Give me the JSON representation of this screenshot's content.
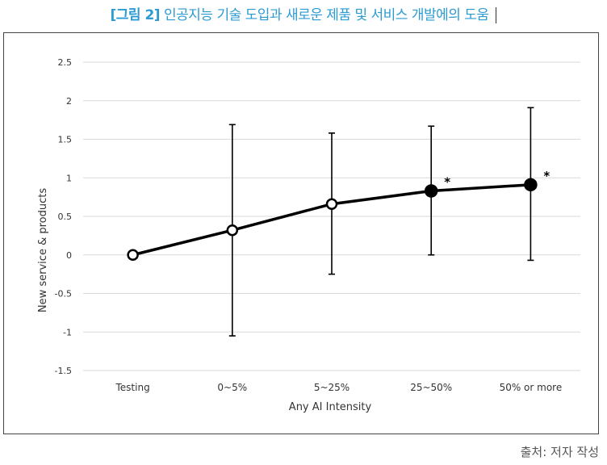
{
  "figure": {
    "prefix": "[그림 2]",
    "title": "인공지능 기술 도입과 새로운 제품 및 서비스 개발에의 도움"
  },
  "source_note": "출처: 저자 작성",
  "colors": {
    "title": "#2b9bd1",
    "line": "#000000",
    "grid": "#d9d9d9"
  },
  "chart_data": {
    "type": "line",
    "xlabel": "Any AI Intensity",
    "ylabel": "New service & products",
    "ylim": [
      -1.5,
      2.5
    ],
    "yticks": [
      -1.5,
      -1,
      -0.5,
      0,
      0.5,
      1,
      1.5,
      2,
      2.5
    ],
    "ytick_labels": [
      "-1.5",
      "-1",
      "-0.5",
      "0",
      "0.5",
      "1",
      "1.5",
      "2",
      "2.5"
    ],
    "grid": true,
    "categories": [
      "Testing",
      "0~5%",
      "5~25%",
      "25~50%",
      "50% or more"
    ],
    "values": [
      0,
      0.32,
      0.66,
      0.83,
      0.91
    ],
    "error_low": [
      0,
      -1.05,
      -0.25,
      0,
      -0.07
    ],
    "error_high": [
      0,
      1.69,
      1.58,
      1.67,
      1.91
    ],
    "marker_filled": [
      false,
      false,
      false,
      true,
      true
    ],
    "significance": [
      "",
      "",
      "",
      "*",
      "*"
    ]
  }
}
